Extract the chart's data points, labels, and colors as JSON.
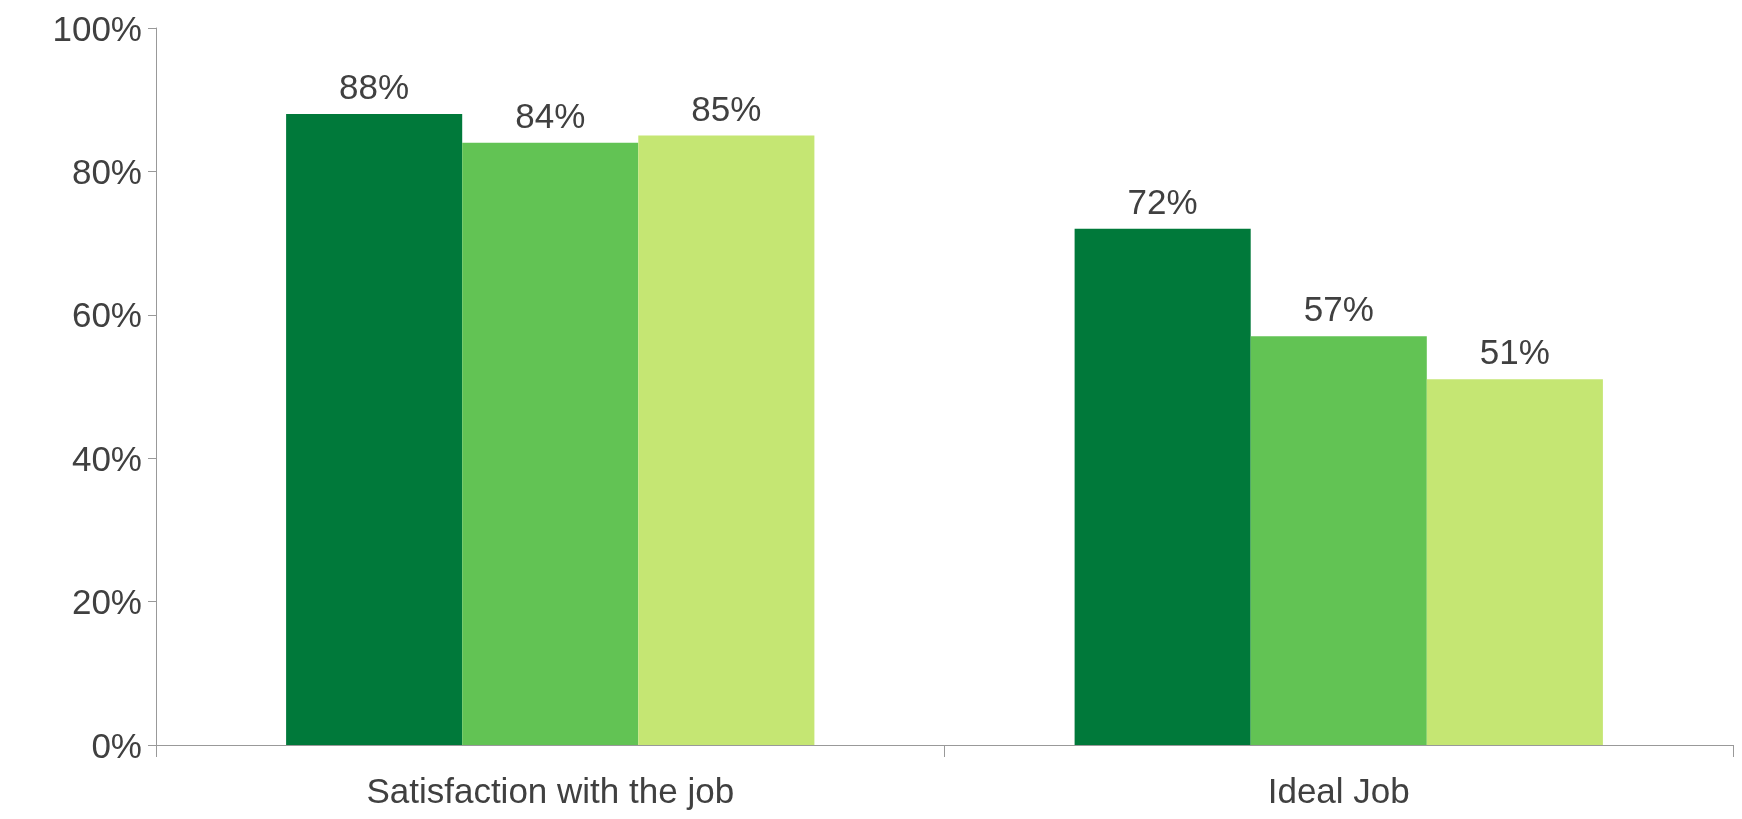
{
  "chart_data": {
    "type": "bar",
    "categories": [
      "Satisfaction with the job",
      "Ideal Job"
    ],
    "series": [
      {
        "color": "#00793a",
        "values": [
          88,
          72
        ],
        "value_labels": [
          "88%",
          "72%"
        ]
      },
      {
        "color": "#62c354",
        "values": [
          84,
          57
        ],
        "value_labels": [
          "84%",
          "57%"
        ]
      },
      {
        "color": "#c5e673",
        "values": [
          85,
          51
        ],
        "value_labels": [
          "85%",
          "51%"
        ]
      }
    ],
    "ylim": [
      0,
      100
    ],
    "yticks": [
      {
        "value": 0,
        "label": "0%"
      },
      {
        "value": 20,
        "label": "20%"
      },
      {
        "value": 40,
        "label": "40%"
      },
      {
        "value": 60,
        "label": "60%"
      },
      {
        "value": 80,
        "label": "80%"
      },
      {
        "value": 100,
        "label": "100%"
      }
    ],
    "grid": false
  }
}
